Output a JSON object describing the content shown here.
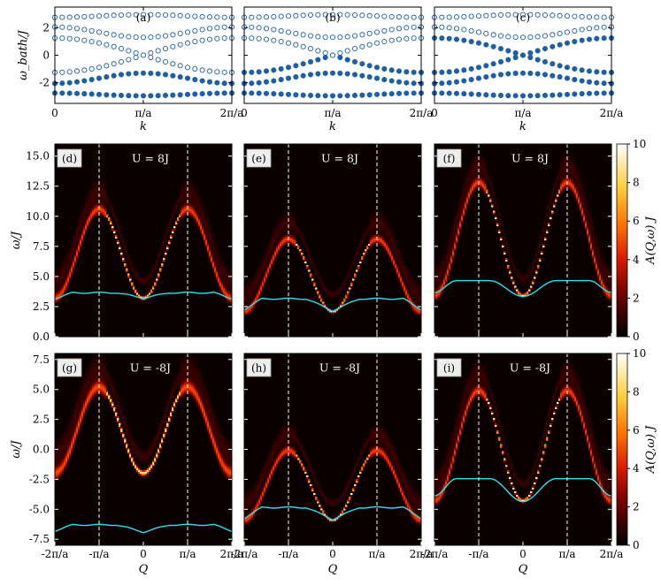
{
  "chart_data": [
    {
      "panel": "(a)",
      "type": "scatter",
      "xlabel": "k",
      "ylabel": "ω_bath/J",
      "xlim": [
        0,
        6.2832
      ],
      "ylim": [
        -3.5,
        3.5
      ],
      "xticks": [
        "0",
        "π/a",
        "2π/a"
      ],
      "yticks": [
        "2",
        "0",
        "-2"
      ],
      "levels": [
        -2.85,
        -2.05,
        -1.25,
        1.25,
        2.05,
        2.85
      ],
      "filled_levels": [
        0,
        1
      ]
    },
    {
      "panel": "(b)",
      "type": "scatter",
      "xlabel": "k",
      "xlim": [
        0,
        6.2832
      ],
      "ylim": [
        -3.5,
        3.5
      ],
      "xticks": [
        "0",
        "π/a",
        "2π/a"
      ],
      "levels": [
        -2.85,
        -2.05,
        -1.25,
        1.25,
        2.05,
        2.85
      ],
      "filled_levels": [
        0,
        1,
        2
      ]
    },
    {
      "panel": "(c)",
      "type": "scatter",
      "xlabel": "k",
      "xlim": [
        0,
        6.2832
      ],
      "ylim": [
        -3.5,
        3.5
      ],
      "xticks": [
        "0",
        "π/a",
        "2π/a"
      ],
      "levels": [
        -2.85,
        -2.05,
        -1.25,
        1.25,
        2.05,
        2.85
      ],
      "filled_levels": [
        0,
        1,
        2,
        3
      ]
    },
    {
      "panel": "(d)",
      "type": "heatmap",
      "annotation": "U = 8J",
      "ylabel": "ω/J",
      "ylim": [
        0,
        16
      ],
      "xlim": [
        -6.2832,
        6.2832
      ],
      "yticks": [
        "0.0",
        "2.5",
        "5.0",
        "7.5",
        "10.0",
        "12.5",
        "15.0"
      ],
      "band": {
        "center": 3.2,
        "amp": 3.7,
        "width": 0.35,
        "inner_width": 0.13
      },
      "edge": {
        "center": 3.2,
        "rise": 0.45,
        "plateau": 0.5
      }
    },
    {
      "panel": "(e)",
      "type": "heatmap",
      "annotation": "U = 8J",
      "ylim": [
        0,
        16
      ],
      "xlim": [
        -6.2832,
        6.2832
      ],
      "band": {
        "center": 2.1,
        "amp": 3.0,
        "width": 0.3,
        "inner_width": 0.11
      },
      "edge": {
        "center": 2.15,
        "rise": 1.0,
        "plateau": 0.9
      }
    },
    {
      "panel": "(f)",
      "type": "heatmap",
      "annotation": "U = 8J",
      "ylim": [
        0,
        16
      ],
      "xlim": [
        -6.2832,
        6.2832
      ],
      "band": {
        "center": 3.4,
        "amp": 4.7,
        "width": 0.35,
        "inner_width": 0.12
      },
      "edge": {
        "center": 3.35,
        "rise": 1.3,
        "plateau": 0.0
      }
    },
    {
      "panel": "(g)",
      "type": "heatmap",
      "annotation": "U = -8J",
      "xlabel": "Q",
      "ylabel": "ω/J",
      "ylim": [
        -8,
        8
      ],
      "xlim": [
        -6.2832,
        6.2832
      ],
      "xticks": [
        "-2π/a",
        "-π/a",
        "0",
        "π/a",
        "2π/a"
      ],
      "yticks": [
        "-7.5",
        "-5.0",
        "-2.5",
        "0.0",
        "2.5",
        "5.0",
        "7.5"
      ],
      "band": {
        "center": -2.0,
        "amp": 3.6,
        "width": 0.45,
        "inner_width": 0.2
      },
      "edge": {
        "center": -6.9,
        "rise": 0.6,
        "plateau": 0.5
      }
    },
    {
      "panel": "(h)",
      "type": "heatmap",
      "annotation": "U = -8J",
      "xlabel": "Q",
      "ylim": [
        -8,
        8
      ],
      "xlim": [
        -6.2832,
        6.2832
      ],
      "xticks": [
        "-2π/a",
        "-π/a",
        "0",
        "π/a",
        "2π/a"
      ],
      "band": {
        "center": -5.9,
        "amp": 2.9,
        "width": 0.3,
        "inner_width": 0.11
      },
      "edge": {
        "center": -5.85,
        "rise": 1.0,
        "plateau": 0.9
      }
    },
    {
      "panel": "(i)",
      "type": "heatmap",
      "annotation": "U = -8J",
      "xlabel": "Q",
      "ylim": [
        -8,
        8
      ],
      "xlim": [
        -6.2832,
        6.2832
      ],
      "xticks": [
        "-2π/a",
        "-π/a",
        "0",
        "π/a",
        "2π/a"
      ],
      "band": {
        "center": -4.3,
        "amp": 4.6,
        "width": 0.35,
        "inner_width": 0.12
      },
      "edge": {
        "center": -4.35,
        "rise": 1.9,
        "plateau": 0.0
      }
    },
    {
      "type": "colorbar",
      "label": "A(Q,ω) J",
      "range": [
        0,
        10
      ],
      "ticks": [
        "0",
        "2",
        "4",
        "6",
        "8",
        "10"
      ]
    }
  ],
  "colors": {
    "scatter": "#1f5fa8",
    "edge_line": "#2ee0f0",
    "dashed": "#ffffff"
  }
}
